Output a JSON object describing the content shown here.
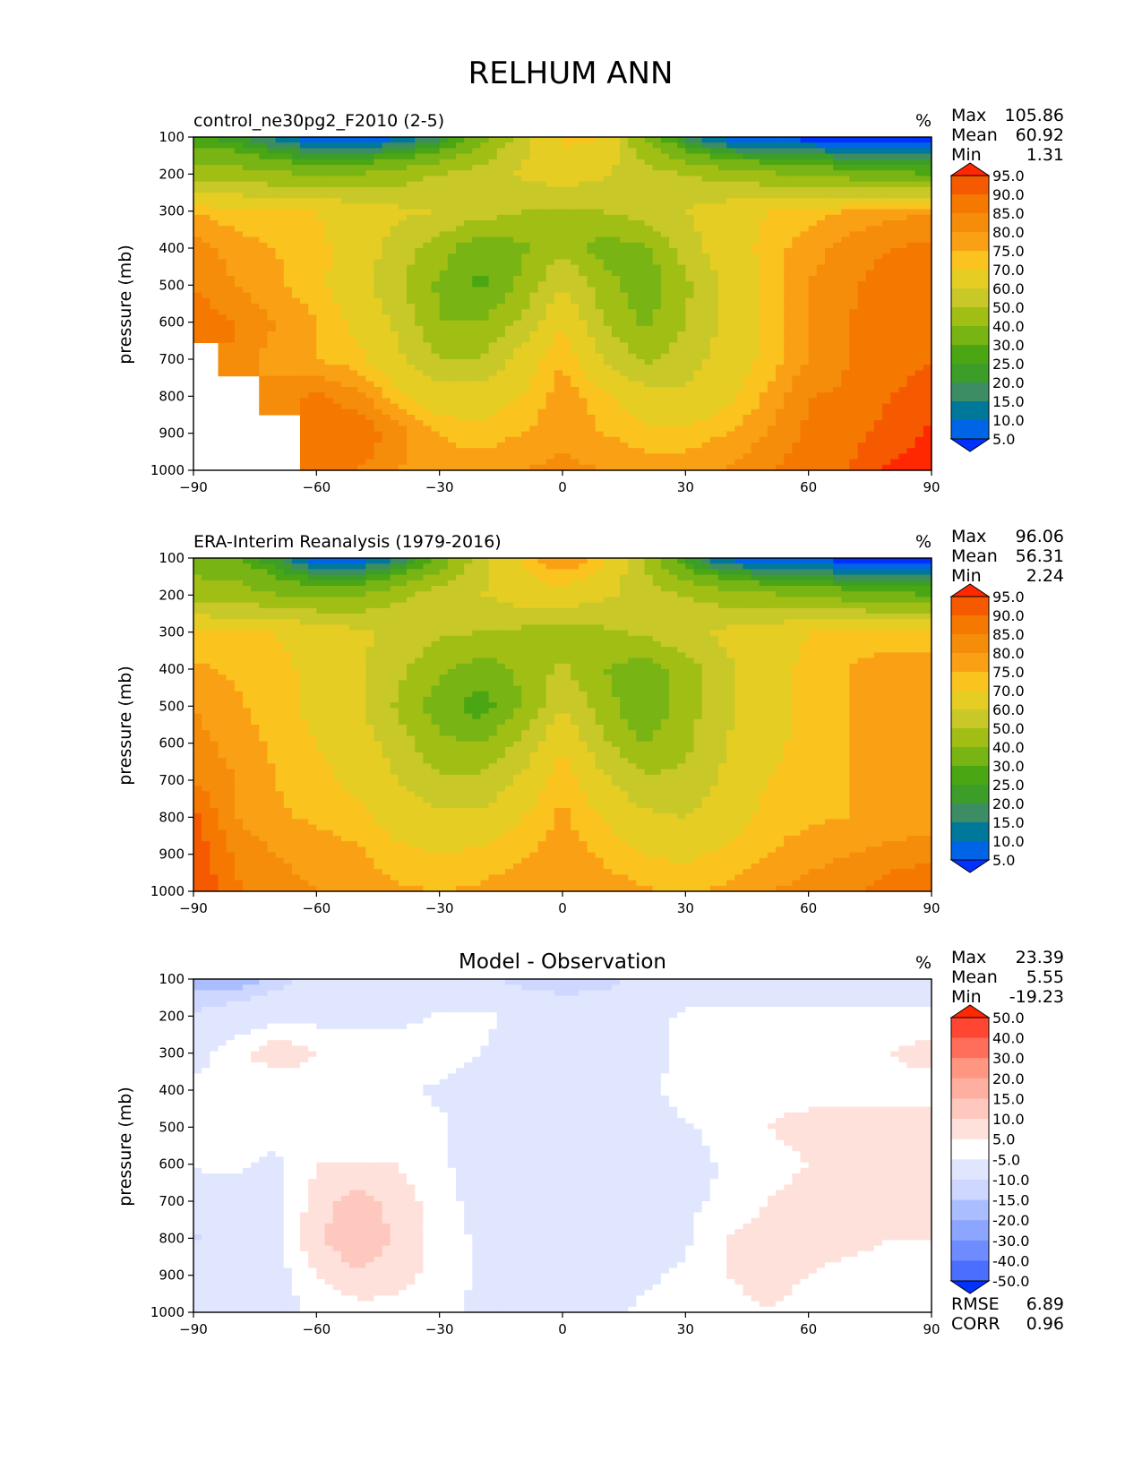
{
  "figure": {
    "title": "RELHUM ANN"
  },
  "colors": {
    "abs_levels": [
      "#0032ff",
      "#0064e6",
      "#00789a",
      "#3c8c64",
      "#3c9e28",
      "#4ba614",
      "#78b414",
      "#a0be14",
      "#c8c828",
      "#e6cd23",
      "#fac31e",
      "#faa014",
      "#f58c0a",
      "#f57800",
      "#f55a00",
      "#ff2800"
    ],
    "diff_levels": [
      "#0032ff",
      "#2850ff",
      "#4b6eff",
      "#6e8cff",
      "#8ca5ff",
      "#aabeff",
      "#cdd7ff",
      "#e1e6ff",
      "#ffffff",
      "#ffe1dc",
      "#ffc8be",
      "#ffafa0",
      "#ff9682",
      "#ff6e5a",
      "#ff4632",
      "#ff2800"
    ]
  },
  "chart_data": [
    {
      "type": "heatmap",
      "panel": "test",
      "subtitle": "control_ne30pg2_F2010 (2-5)",
      "units": "%",
      "ylabel": "pressure (mb)",
      "xlim": [
        -90,
        90
      ],
      "ylim": [
        1000,
        100
      ],
      "xticks": [
        "−90",
        "−60",
        "−30",
        "0",
        "30",
        "60",
        "90"
      ],
      "yticks": [
        "100",
        "200",
        "300",
        "400",
        "500",
        "600",
        "700",
        "800",
        "900",
        "1000"
      ],
      "stats": {
        "max_label": "Max",
        "max": "105.86",
        "mean_label": "Mean",
        "mean": "60.92",
        "min_label": "Min",
        "min": "1.31"
      },
      "colorbar_labels": [
        "95.0",
        "90.0",
        "85.0",
        "80.0",
        "75.0",
        "70.0",
        "60.0",
        "50.0",
        "40.0",
        "30.0",
        "25.0",
        "20.0",
        "15.0",
        "10.0",
        "5.0"
      ],
      "lat": [
        -90,
        -80,
        -70,
        -60,
        -50,
        -40,
        -30,
        -20,
        -10,
        0,
        10,
        20,
        30,
        40,
        50,
        60,
        70,
        80,
        90
      ],
      "lev": [
        100,
        200,
        300,
        400,
        500,
        600,
        700,
        800,
        900,
        1000
      ],
      "values": [
        [
          25,
          22,
          12,
          4,
          4,
          8,
          18,
          35,
          55,
          72,
          70,
          38,
          18,
          6,
          3,
          2,
          2,
          2,
          2
        ],
        [
          45,
          45,
          42,
          38,
          40,
          45,
          50,
          55,
          62,
          66,
          62,
          55,
          50,
          45,
          42,
          38,
          35,
          32,
          30
        ],
        [
          75,
          72,
          70,
          70,
          66,
          62,
          60,
          55,
          50,
          48,
          50,
          55,
          60,
          66,
          70,
          72,
          76,
          78,
          80
        ],
        [
          82,
          78,
          75,
          72,
          66,
          55,
          45,
          32,
          38,
          48,
          35,
          38,
          55,
          66,
          72,
          78,
          82,
          85,
          86
        ],
        [
          85,
          80,
          76,
          72,
          65,
          52,
          38,
          28,
          42,
          60,
          45,
          32,
          48,
          62,
          72,
          80,
          84,
          88,
          90
        ],
        [
          88,
          85,
          80,
          75,
          68,
          58,
          40,
          40,
          52,
          70,
          50,
          38,
          50,
          62,
          72,
          80,
          85,
          88,
          90
        ],
        [
          null,
          82,
          78,
          75,
          72,
          62,
          50,
          50,
          65,
          75,
          60,
          48,
          55,
          65,
          72,
          80,
          85,
          88,
          90
        ],
        [
          null,
          null,
          82,
          86,
          82,
          72,
          65,
          65,
          70,
          78,
          72,
          65,
          62,
          68,
          76,
          85,
          86,
          90,
          92
        ],
        [
          null,
          null,
          null,
          88,
          90,
          82,
          75,
          72,
          75,
          78,
          75,
          72,
          72,
          75,
          80,
          86,
          88,
          92,
          96
        ],
        [
          null,
          null,
          null,
          85,
          85,
          80,
          78,
          78,
          80,
          82,
          80,
          78,
          78,
          80,
          85,
          88,
          90,
          96,
          98
        ]
      ]
    },
    {
      "type": "heatmap",
      "panel": "reference",
      "subtitle": "ERA-Interim Reanalysis (1979-2016)",
      "units": "%",
      "ylabel": "pressure (mb)",
      "xlim": [
        -90,
        90
      ],
      "ylim": [
        1000,
        100
      ],
      "xticks": [
        "−90",
        "−60",
        "−30",
        "0",
        "30",
        "60",
        "90"
      ],
      "yticks": [
        "100",
        "200",
        "300",
        "400",
        "500",
        "600",
        "700",
        "800",
        "900",
        "1000"
      ],
      "stats": {
        "max_label": "Max",
        "max": "96.06",
        "mean_label": "Mean",
        "mean": "56.31",
        "min_label": "Min",
        "min": "2.24"
      },
      "colorbar_labels": [
        "95.0",
        "90.0",
        "85.0",
        "80.0",
        "75.0",
        "70.0",
        "60.0",
        "50.0",
        "40.0",
        "30.0",
        "25.0",
        "20.0",
        "15.0",
        "10.0",
        "5.0"
      ],
      "lat": [
        -90,
        -80,
        -70,
        -60,
        -50,
        -40,
        -30,
        -20,
        -10,
        0,
        10,
        20,
        30,
        40,
        50,
        60,
        70,
        80,
        90
      ],
      "lev": [
        100,
        200,
        300,
        400,
        500,
        600,
        700,
        800,
        900,
        1000
      ],
      "values": [
        [
          35,
          32,
          20,
          6,
          6,
          15,
          32,
          55,
          72,
          80,
          72,
          50,
          22,
          8,
          4,
          3,
          2,
          2,
          2
        ],
        [
          45,
          45,
          40,
          38,
          40,
          48,
          55,
          60,
          65,
          68,
          62,
          55,
          50,
          45,
          42,
          38,
          35,
          32,
          30
        ],
        [
          72,
          70,
          70,
          66,
          62,
          58,
          52,
          50,
          48,
          45,
          48,
          52,
          58,
          62,
          66,
          70,
          72,
          72,
          72
        ],
        [
          76,
          74,
          72,
          68,
          62,
          52,
          42,
          35,
          42,
          52,
          40,
          35,
          45,
          58,
          66,
          72,
          75,
          78,
          78
        ],
        [
          80,
          76,
          72,
          68,
          62,
          48,
          35,
          25,
          40,
          60,
          45,
          30,
          45,
          58,
          66,
          72,
          75,
          76,
          76
        ],
        [
          82,
          78,
          74,
          70,
          66,
          55,
          42,
          40,
          52,
          70,
          52,
          40,
          48,
          60,
          68,
          72,
          75,
          75,
          75
        ],
        [
          85,
          80,
          75,
          72,
          68,
          60,
          52,
          52,
          62,
          75,
          62,
          52,
          52,
          62,
          70,
          72,
          75,
          75,
          75
        ],
        [
          92,
          80,
          76,
          74,
          72,
          66,
          62,
          62,
          70,
          76,
          70,
          62,
          60,
          66,
          72,
          74,
          75,
          76,
          76
        ],
        [
          94,
          84,
          80,
          78,
          76,
          72,
          70,
          72,
          74,
          78,
          74,
          70,
          68,
          72,
          75,
          78,
          80,
          82,
          84
        ],
        [
          96,
          86,
          82,
          80,
          78,
          76,
          75,
          76,
          78,
          80,
          78,
          76,
          74,
          76,
          80,
          82,
          84,
          88,
          90
        ]
      ]
    },
    {
      "type": "heatmap",
      "panel": "difference",
      "title": "Model - Observation",
      "units": "%",
      "ylabel": "pressure (mb)",
      "xlim": [
        -90,
        90
      ],
      "ylim": [
        1000,
        100
      ],
      "xticks": [
        "−90",
        "−60",
        "−30",
        "0",
        "30",
        "60",
        "90"
      ],
      "yticks": [
        "100",
        "200",
        "300",
        "400",
        "500",
        "600",
        "700",
        "800",
        "900",
        "1000"
      ],
      "stats": {
        "max_label": "Max",
        "max": "23.39",
        "mean_label": "Mean",
        "mean": "5.55",
        "min_label": "Min",
        "min": "-19.23"
      },
      "metrics": {
        "rmse_label": "RMSE",
        "rmse": "6.89",
        "corr_label": "CORR",
        "corr": "0.96"
      },
      "colorbar_labels": [
        "50.0",
        "40.0",
        "30.0",
        "20.0",
        "15.0",
        "10.0",
        "5.0",
        "-5.0",
        "-10.0",
        "-15.0",
        "-20.0",
        "-30.0",
        "-40.0",
        "-50.0"
      ],
      "lat": [
        -90,
        -80,
        -70,
        -60,
        -50,
        -40,
        -30,
        -20,
        -10,
        0,
        10,
        20,
        30,
        40,
        50,
        60,
        70,
        80,
        90
      ],
      "lev": [
        100,
        200,
        300,
        400,
        500,
        600,
        700,
        800,
        900,
        1000
      ],
      "values": [
        [
          -12,
          -14,
          -8,
          -2,
          0,
          0,
          0,
          -2,
          -8,
          -10,
          -8,
          -2,
          0,
          0,
          0,
          0,
          0,
          0,
          0
        ],
        [
          -4,
          0,
          3,
          3,
          2,
          3,
          6,
          6,
          4,
          2,
          2,
          3,
          6,
          7,
          7,
          6,
          7,
          7,
          7
        ],
        [
          3,
          8,
          14,
          10,
          10,
          8,
          8,
          5,
          2,
          2,
          2,
          3,
          6,
          6,
          8,
          6,
          6,
          10,
          12
        ],
        [
          6,
          6,
          5,
          8,
          8,
          6,
          4,
          2,
          2,
          2,
          2,
          3,
          8,
          8,
          8,
          8,
          8,
          8,
          8
        ],
        [
          6,
          10,
          6,
          8,
          8,
          8,
          6,
          2,
          2,
          2,
          2,
          2,
          4,
          8,
          10,
          12,
          12,
          12,
          12
        ],
        [
          6,
          6,
          4,
          10,
          10,
          10,
          6,
          2,
          2,
          2,
          2,
          2,
          2,
          6,
          8,
          10,
          12,
          12,
          12
        ],
        [
          0,
          2,
          4,
          12,
          18,
          12,
          8,
          2,
          2,
          2,
          2,
          2,
          4,
          6,
          10,
          12,
          12,
          12,
          12
        ],
        [
          -6,
          0,
          4,
          14,
          20,
          14,
          8,
          4,
          2,
          2,
          2,
          2,
          4,
          10,
          12,
          12,
          12,
          10,
          10
        ],
        [
          0,
          0,
          2,
          10,
          14,
          12,
          8,
          4,
          2,
          2,
          2,
          4,
          6,
          10,
          12,
          10,
          8,
          8,
          8
        ],
        [
          0,
          0,
          2,
          6,
          8,
          8,
          6,
          4,
          2,
          2,
          4,
          6,
          6,
          8,
          10,
          8,
          6,
          6,
          6
        ]
      ]
    }
  ]
}
